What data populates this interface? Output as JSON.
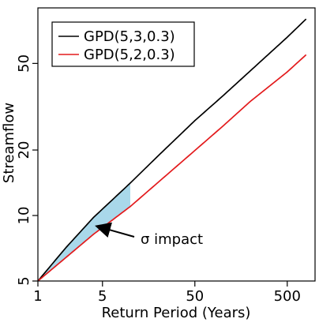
{
  "colors": {
    "series_1": "#000000",
    "series_2": "#e31a1c",
    "shade_fill": "#a9d8ea",
    "axis": "#000000"
  },
  "chart_data": {
    "type": "line",
    "title": "",
    "xlabel": "Return Period (Years)",
    "ylabel": "Streamflow",
    "x_scale": "log",
    "y_scale": "log",
    "xlim": [
      1,
      1000
    ],
    "ylim": [
      5,
      90
    ],
    "x_ticks": [
      1,
      5,
      50,
      500
    ],
    "x_tick_labels": [
      "1",
      "5",
      "50",
      "500"
    ],
    "y_ticks": [
      5,
      10,
      20,
      50
    ],
    "y_tick_labels": [
      "5",
      "10",
      "20",
      "50"
    ],
    "grid": false,
    "legend_position": "top-left",
    "series": [
      {
        "name": "GPD(5,3,0.3)",
        "color_key": "series_1",
        "x": [
          1,
          2,
          4,
          10,
          20,
          50,
          100,
          200,
          500,
          800
        ],
        "y": [
          5,
          7.1,
          9.8,
          14.1,
          18.8,
          27.3,
          35.4,
          46.3,
          66.0,
          80.0
        ]
      },
      {
        "name": "GPD(5,2,0.3)",
        "color_key": "series_2",
        "x": [
          1,
          2,
          4,
          10,
          20,
          50,
          100,
          200,
          500,
          800
        ],
        "y": [
          5,
          6.4,
          8.2,
          11.0,
          14.2,
          19.9,
          25.7,
          33.5,
          45.7,
          54.8
        ]
      }
    ],
    "shaded_region": {
      "x_from": 1,
      "x_to": 10,
      "between": [
        "GPD(5,3,0.3)",
        "GPD(5,2,0.3)"
      ]
    },
    "annotations": [
      {
        "text": "σ impact",
        "arrow_to": {
          "x": 4.2,
          "y": 9.2
        }
      }
    ]
  }
}
